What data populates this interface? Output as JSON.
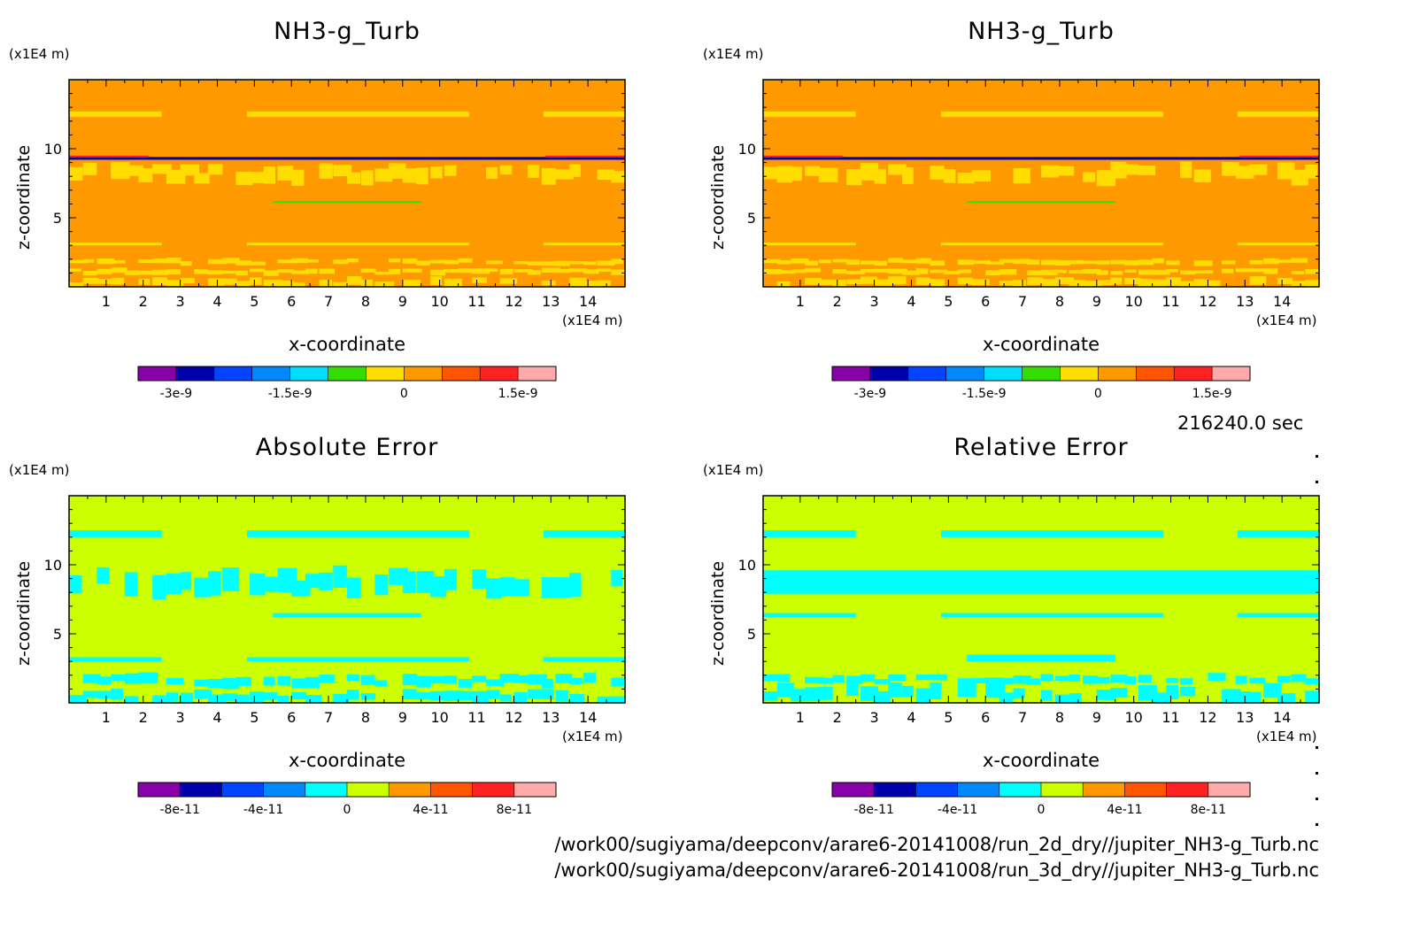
{
  "chart_data": [
    {
      "type": "heatmap",
      "title": "NH3-g_Turb",
      "xlabel": "x-coordinate",
      "ylabel": "z-coordinate",
      "x_unit": "(x1E4 m)",
      "y_unit": "(x1E4 m)",
      "xlim": [
        0,
        15
      ],
      "ylim": [
        0,
        15
      ],
      "xticks": [
        "1",
        "2",
        "3",
        "4",
        "5",
        "6",
        "7",
        "8",
        "9",
        "10",
        "11",
        "12",
        "13",
        "14"
      ],
      "yticks": [
        "5",
        "10"
      ],
      "background": "#ff9900",
      "colorbar": {
        "colors": [
          "#8800aa",
          "#0000aa",
          "#0044ff",
          "#0088ff",
          "#00ddff",
          "#33dd00",
          "#ffdd00",
          "#ff9900",
          "#ff5500",
          "#ff2222",
          "#ffaaaa"
        ],
        "tick_labels": [
          "-3e-9",
          "-1.5e-9",
          "0",
          "1.5e-9"
        ],
        "tick_positions": [
          1,
          4,
          7,
          10
        ]
      },
      "bands": [
        {
          "z": [
            0,
            0.6
          ],
          "color": "#ffdd00",
          "pattern": "waves"
        },
        {
          "z": [
            0.9,
            1.3
          ],
          "color": "#ffdd00",
          "pattern": "waves"
        },
        {
          "z": [
            1.6,
            2.0
          ],
          "color": "#ffdd00",
          "pattern": "waves"
        },
        {
          "z": [
            3.0,
            3.2
          ],
          "color": "#ffdd00",
          "pattern": "partial"
        },
        {
          "z": [
            6.1,
            6.2
          ],
          "color": "#33dd00",
          "pattern": "short"
        },
        {
          "z": [
            7.6,
            8.8
          ],
          "color": "#ffdd00",
          "pattern": "waves"
        },
        {
          "z": [
            9.2,
            9.4
          ],
          "color": "#0000aa",
          "pattern": "line"
        },
        {
          "z": [
            9.4,
            9.5
          ],
          "color": "#ff2222",
          "pattern": "edges"
        },
        {
          "z": [
            12.3,
            12.7
          ],
          "color": "#ffdd00",
          "pattern": "partial"
        }
      ]
    },
    {
      "type": "heatmap",
      "title": "NH3-g_Turb",
      "xlabel": "x-coordinate",
      "ylabel": "z-coordinate",
      "x_unit": "(x1E4 m)",
      "y_unit": "(x1E4 m)",
      "xlim": [
        0,
        15
      ],
      "ylim": [
        0,
        15
      ],
      "xticks": [
        "1",
        "2",
        "3",
        "4",
        "5",
        "6",
        "7",
        "8",
        "9",
        "10",
        "11",
        "12",
        "13",
        "14"
      ],
      "yticks": [
        "5",
        "10"
      ],
      "background": "#ff9900",
      "colorbar": {
        "colors": [
          "#8800aa",
          "#0000aa",
          "#0044ff",
          "#0088ff",
          "#00ddff",
          "#33dd00",
          "#ffdd00",
          "#ff9900",
          "#ff5500",
          "#ff2222",
          "#ffaaaa"
        ],
        "tick_labels": [
          "-3e-9",
          "-1.5e-9",
          "0",
          "1.5e-9"
        ],
        "tick_positions": [
          1,
          4,
          7,
          10
        ]
      },
      "bands": [
        {
          "z": [
            0,
            0.6
          ],
          "color": "#ffdd00",
          "pattern": "waves"
        },
        {
          "z": [
            0.9,
            1.3
          ],
          "color": "#ffdd00",
          "pattern": "waves"
        },
        {
          "z": [
            1.6,
            2.0
          ],
          "color": "#ffdd00",
          "pattern": "waves"
        },
        {
          "z": [
            3.0,
            3.2
          ],
          "color": "#ffdd00",
          "pattern": "partial"
        },
        {
          "z": [
            6.1,
            6.2
          ],
          "color": "#33dd00",
          "pattern": "short"
        },
        {
          "z": [
            7.6,
            8.8
          ],
          "color": "#ffdd00",
          "pattern": "waves"
        },
        {
          "z": [
            9.2,
            9.4
          ],
          "color": "#0000aa",
          "pattern": "line"
        },
        {
          "z": [
            9.4,
            9.5
          ],
          "color": "#ff2222",
          "pattern": "edges"
        },
        {
          "z": [
            12.3,
            12.7
          ],
          "color": "#ffdd00",
          "pattern": "partial"
        }
      ]
    },
    {
      "type": "heatmap",
      "title": "Absolute Error",
      "xlabel": "x-coordinate",
      "ylabel": "z-coordinate",
      "x_unit": "(x1E4 m)",
      "y_unit": "(x1E4 m)",
      "xlim": [
        0,
        15
      ],
      "ylim": [
        0,
        15
      ],
      "xticks": [
        "1",
        "2",
        "3",
        "4",
        "5",
        "6",
        "7",
        "8",
        "9",
        "10",
        "11",
        "12",
        "13",
        "14"
      ],
      "yticks": [
        "5",
        "10"
      ],
      "background": "#ccff00",
      "colorbar": {
        "colors": [
          "#8800aa",
          "#0000aa",
          "#0044ff",
          "#0088ff",
          "#00ffff",
          "#ccff00",
          "#ff9900",
          "#ff5500",
          "#ff2222",
          "#ffaaaa"
        ],
        "tick_labels": [
          "-8e-11",
          "-4e-11",
          "0",
          "4e-11",
          "8e-11"
        ],
        "tick_positions": [
          1,
          3,
          5,
          7,
          9
        ]
      },
      "bands": [
        {
          "z": [
            0,
            0.8
          ],
          "color": "#00ffff",
          "pattern": "waves"
        },
        {
          "z": [
            1.2,
            2.0
          ],
          "color": "#00ffff",
          "pattern": "waves"
        },
        {
          "z": [
            3.0,
            3.3
          ],
          "color": "#00ffff",
          "pattern": "partial"
        },
        {
          "z": [
            6.2,
            6.5
          ],
          "color": "#00ffff",
          "pattern": "short"
        },
        {
          "z": [
            7.9,
            9.6
          ],
          "color": "#00ffff",
          "pattern": "waves"
        },
        {
          "z": [
            12.0,
            12.5
          ],
          "color": "#00ffff",
          "pattern": "partial"
        }
      ]
    },
    {
      "type": "heatmap",
      "title": "Relative Error",
      "xlabel": "x-coordinate",
      "ylabel": "z-coordinate",
      "x_unit": "(x1E4 m)",
      "y_unit": "(x1E4 m)",
      "xlim": [
        0,
        15
      ],
      "ylim": [
        0,
        15
      ],
      "xticks": [
        "1",
        "2",
        "3",
        "4",
        "5",
        "6",
        "7",
        "8",
        "9",
        "10",
        "11",
        "12",
        "13",
        "14"
      ],
      "yticks": [
        "5",
        "10"
      ],
      "background": "#ccff00",
      "colorbar": {
        "colors": [
          "#8800aa",
          "#0000aa",
          "#0044ff",
          "#0088ff",
          "#00ffff",
          "#ccff00",
          "#ff9900",
          "#ff5500",
          "#ff2222",
          "#ffaaaa"
        ],
        "tick_labels": [
          "-8e-11",
          "-4e-11",
          "0",
          "4e-11",
          "8e-11"
        ],
        "tick_positions": [
          1,
          3,
          5,
          7,
          9
        ]
      },
      "bands": [
        {
          "z": [
            0,
            1.2
          ],
          "color": "#00ffff",
          "pattern": "waves"
        },
        {
          "z": [
            1.4,
            2.0
          ],
          "color": "#00ffff",
          "pattern": "waves"
        },
        {
          "z": [
            3.0,
            3.5
          ],
          "color": "#00ffff",
          "pattern": "short"
        },
        {
          "z": [
            6.2,
            6.5
          ],
          "color": "#00ffff",
          "pattern": "partial"
        },
        {
          "z": [
            7.9,
            9.6
          ],
          "color": "#00ffff",
          "pattern": "solid"
        },
        {
          "z": [
            12.0,
            12.5
          ],
          "color": "#00ffff",
          "pattern": "partial"
        }
      ]
    }
  ],
  "timestamp": "216240.0 sec",
  "footer": {
    "line1": "/work00/sugiyama/deepconv/arare6-20141008/run_2d_dry//jupiter_NH3-g_Turb.nc",
    "line2": "/work00/sugiyama/deepconv/arare6-20141008/run_3d_dry//jupiter_NH3-g_Turb.nc"
  }
}
